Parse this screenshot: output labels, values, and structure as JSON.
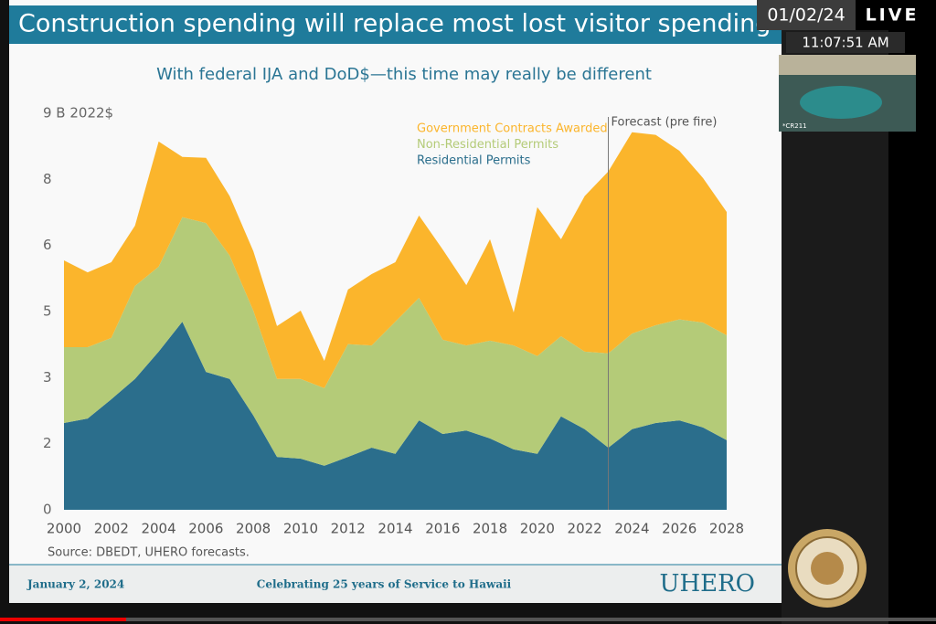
{
  "slide": {
    "source": "Source: DBEDT,  UHERO forecasts.",
    "footer_date": "January 2, 2024",
    "footer_tagline": "Celebrating 25 years of Service to Hawaii",
    "logo": "UHERO"
  },
  "overlay": {
    "date": "01/02/24",
    "live": "LIVE",
    "time": "11:07:51 AM",
    "room": "*CR211"
  },
  "chart_data": {
    "type": "stacked-area",
    "title": "Construction spending will replace most lost visitor spending",
    "subtitle": "With federal IJA and DoD$—this time may really be different",
    "x": [
      2000,
      2001,
      2002,
      2003,
      2004,
      2005,
      2006,
      2007,
      2008,
      2009,
      2010,
      2011,
      2012,
      2013,
      2014,
      2015,
      2016,
      2017,
      2018,
      2019,
      2020,
      2021,
      2022,
      2023,
      2024,
      2025,
      2026,
      2027,
      2028
    ],
    "series": [
      {
        "name": "Residential Permits",
        "color": "#2b6e8c",
        "values": [
          1.97,
          2.07,
          2.51,
          2.97,
          3.59,
          4.27,
          3.13,
          2.97,
          2.14,
          1.2,
          1.16,
          1.0,
          1.2,
          1.41,
          1.27,
          2.03,
          1.72,
          1.8,
          1.62,
          1.37,
          1.27,
          2.12,
          1.83,
          1.41,
          1.83,
          1.97,
          2.03,
          1.87,
          1.58
        ]
      },
      {
        "name": "Non-Residential Permits",
        "color": "#b4cb78",
        "values": [
          1.72,
          1.62,
          1.39,
          2.11,
          1.93,
          2.37,
          3.38,
          2.8,
          2.38,
          1.77,
          1.81,
          1.76,
          2.56,
          2.32,
          3.0,
          2.78,
          2.14,
          1.93,
          2.22,
          2.36,
          2.22,
          1.82,
          1.76,
          2.14,
          2.17,
          2.22,
          2.29,
          2.38,
          2.38
        ]
      },
      {
        "name": "Government Contracts Awarded",
        "color": "#fbb52c",
        "values": [
          1.97,
          1.7,
          1.72,
          1.37,
          2.84,
          1.37,
          1.48,
          1.35,
          1.35,
          1.2,
          1.55,
          0.62,
          1.24,
          1.62,
          1.35,
          1.87,
          2.05,
          1.37,
          2.3,
          0.75,
          3.38,
          2.2,
          3.53,
          4.13,
          4.57,
          4.32,
          3.83,
          3.28,
          2.8
        ]
      }
    ],
    "xlim": [
      2000,
      2028
    ],
    "xticks": [
      2000,
      2002,
      2004,
      2006,
      2008,
      2010,
      2012,
      2014,
      2016,
      2018,
      2020,
      2022,
      2024,
      2026,
      2028
    ],
    "ylim": [
      0,
      9
    ],
    "yticks": [
      0,
      {
        "value": 1.5,
        "label": "2"
      },
      3,
      {
        "value": 4.5,
        "label": "5"
      },
      6,
      {
        "value": 7.5,
        "label": "8"
      },
      {
        "value": 9,
        "label": "9 B 2022$"
      }
    ],
    "grid": false,
    "annotations": [
      {
        "x": 2023,
        "text": "Forecast (pre fire)"
      }
    ]
  }
}
